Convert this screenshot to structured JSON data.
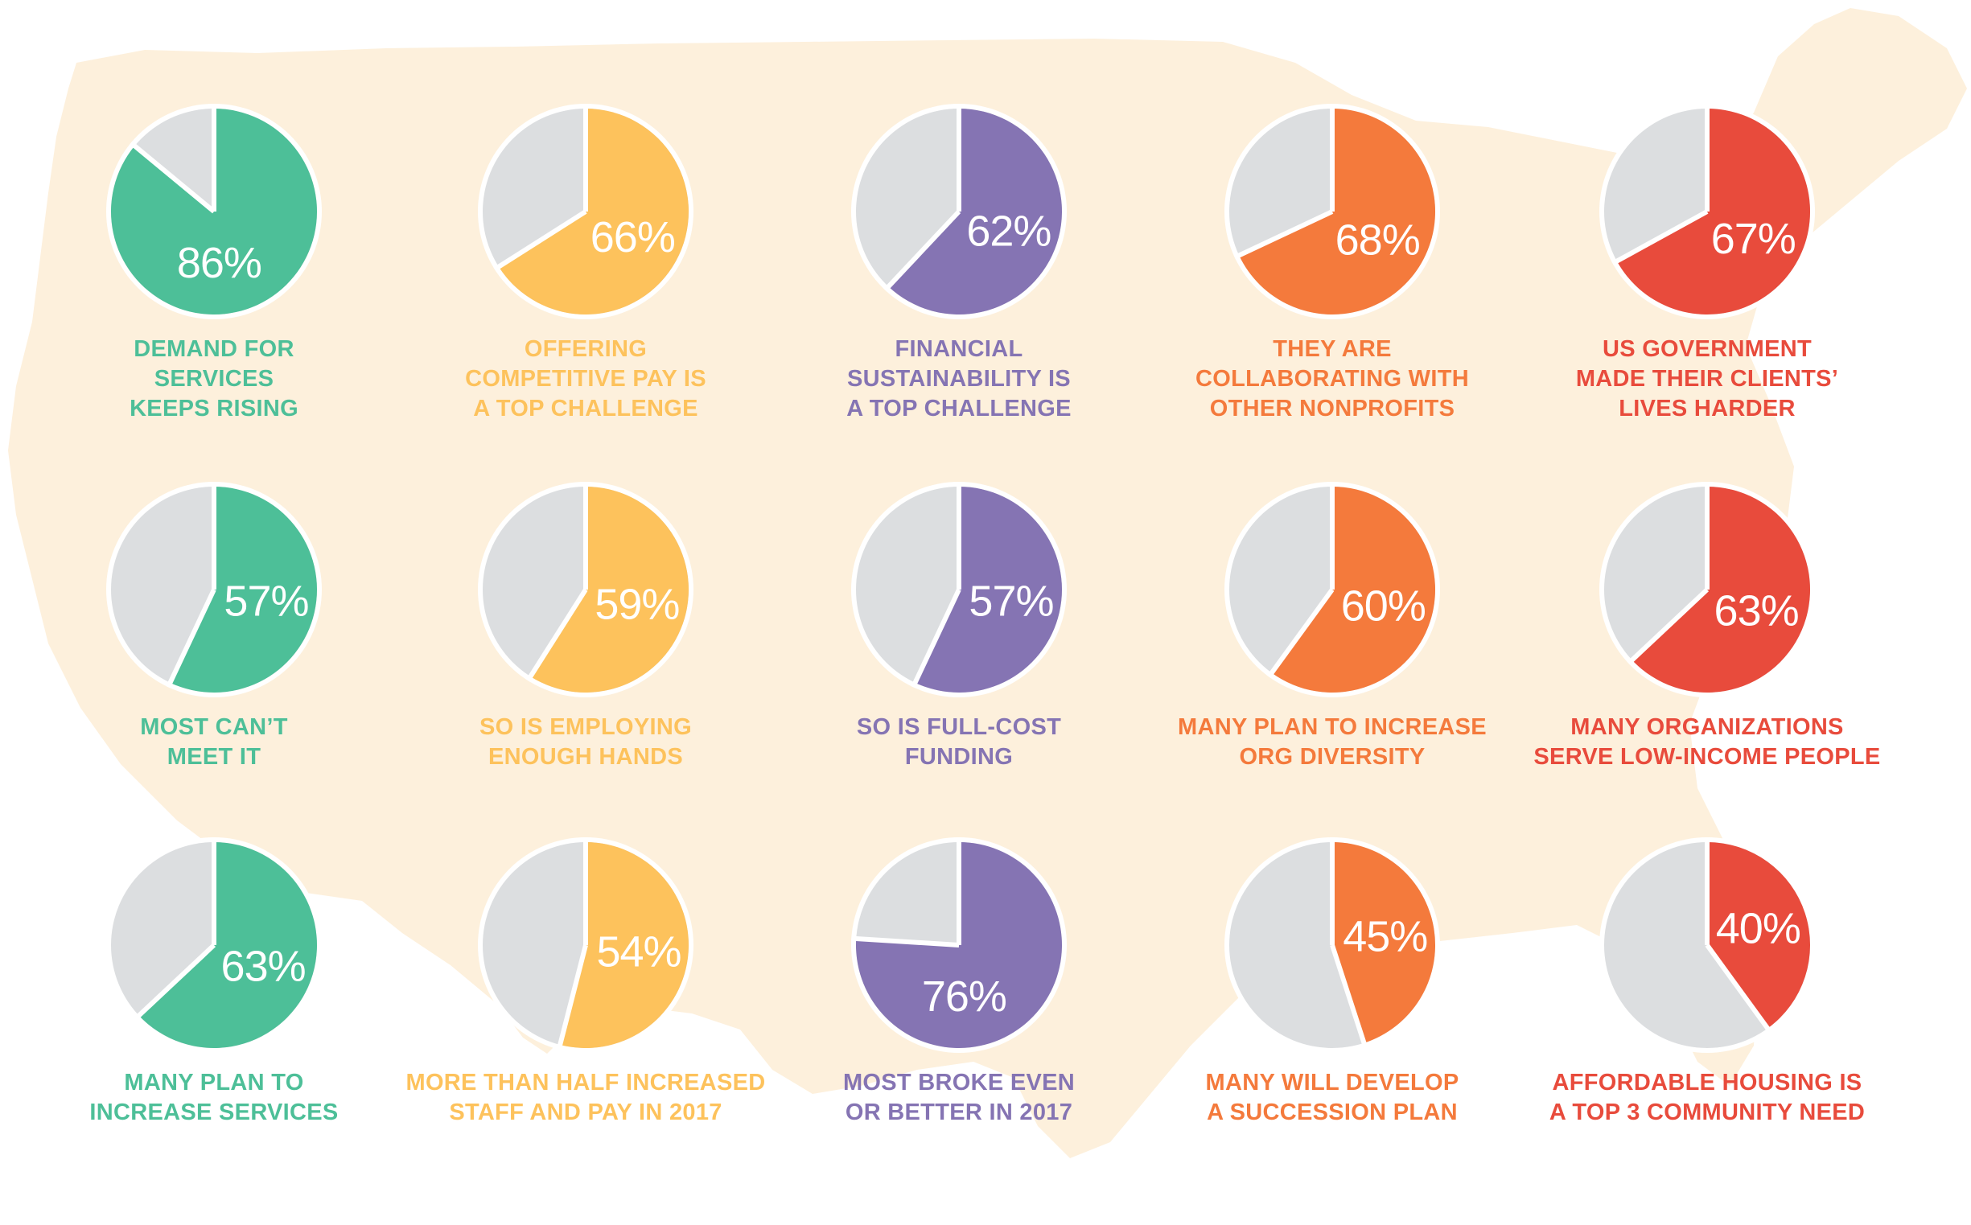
{
  "colors": {
    "green": "#4dbf98",
    "yellow": "#fdc25c",
    "purple": "#8574b3",
    "orange": "#f47a3c",
    "red": "#e84b3c",
    "remainder": "#dcdee0",
    "divider": "#ffffff",
    "map_background": "#fdf0dc"
  },
  "icons": [
    "us-map-silhouette"
  ],
  "chart_data": [
    {
      "type": "pie",
      "value_pct": 86,
      "label": "86%",
      "caption": [
        "DEMAND FOR",
        "SERVICES",
        "KEEPS RISING"
      ],
      "color": "green"
    },
    {
      "type": "pie",
      "value_pct": 66,
      "label": "66%",
      "caption": [
        "OFFERING",
        "COMPETITIVE PAY IS",
        "A TOP CHALLENGE"
      ],
      "color": "yellow"
    },
    {
      "type": "pie",
      "value_pct": 62,
      "label": "62%",
      "caption": [
        "FINANCIAL",
        "SUSTAINABILITY IS",
        "A TOP CHALLENGE"
      ],
      "color": "purple"
    },
    {
      "type": "pie",
      "value_pct": 68,
      "label": "68%",
      "caption": [
        "THEY ARE",
        "COLLABORATING WITH",
        "OTHER NONPROFITS"
      ],
      "color": "orange"
    },
    {
      "type": "pie",
      "value_pct": 67,
      "label": "67%",
      "caption": [
        "US GOVERNMENT",
        "MADE THEIR CLIENTS’",
        "LIVES HARDER"
      ],
      "color": "red"
    },
    {
      "type": "pie",
      "value_pct": 57,
      "label": "57%",
      "caption": [
        "MOST CAN’T",
        "MEET IT"
      ],
      "color": "green"
    },
    {
      "type": "pie",
      "value_pct": 59,
      "label": "59%",
      "caption": [
        "SO IS EMPLOYING",
        "ENOUGH HANDS"
      ],
      "color": "yellow"
    },
    {
      "type": "pie",
      "value_pct": 57,
      "label": "57%",
      "caption": [
        "SO IS FULL-COST",
        "FUNDING"
      ],
      "color": "purple"
    },
    {
      "type": "pie",
      "value_pct": 60,
      "label": "60%",
      "caption": [
        "MANY PLAN TO INCREASE",
        "ORG DIVERSITY"
      ],
      "color": "orange"
    },
    {
      "type": "pie",
      "value_pct": 63,
      "label": "63%",
      "caption": [
        "MANY ORGANIZATIONS",
        "SERVE LOW-INCOME PEOPLE"
      ],
      "color": "red"
    },
    {
      "type": "pie",
      "value_pct": 63,
      "label": "63%",
      "caption": [
        "MANY PLAN TO",
        "INCREASE SERVICES"
      ],
      "color": "green"
    },
    {
      "type": "pie",
      "value_pct": 54,
      "label": "54%",
      "caption": [
        "MORE THAN HALF INCREASED",
        "STAFF AND PAY IN 2017"
      ],
      "color": "yellow"
    },
    {
      "type": "pie",
      "value_pct": 76,
      "label": "76%",
      "caption": [
        "MOST BROKE EVEN",
        "OR BETTER IN 2017"
      ],
      "color": "purple"
    },
    {
      "type": "pie",
      "value_pct": 45,
      "label": "45%",
      "caption": [
        "MANY WILL DEVELOP",
        "A SUCCESSION PLAN"
      ],
      "color": "orange"
    },
    {
      "type": "pie",
      "value_pct": 40,
      "label": "40%",
      "caption": [
        "AFFORDABLE HOUSING IS",
        "A TOP 3 COMMUNITY NEED"
      ],
      "color": "red"
    }
  ]
}
